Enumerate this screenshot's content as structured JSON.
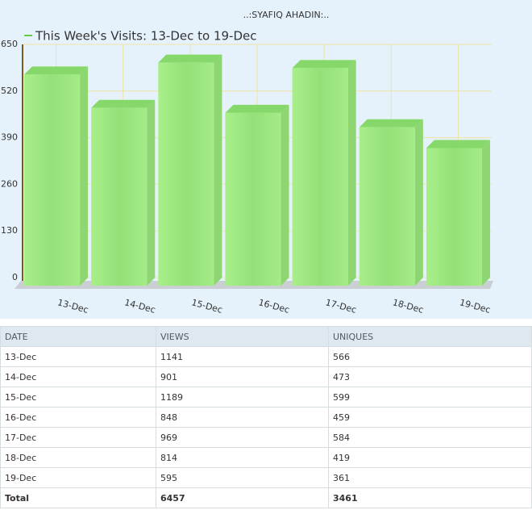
{
  "chart_data": {
    "type": "bar",
    "title": "..:SYAFIQ AHADIN:..",
    "series": [
      {
        "name": "This Week's Visits: 13-Dec to 19-Dec",
        "color": "#66cc44",
        "values": [
          566,
          473,
          599,
          459,
          584,
          419,
          361
        ]
      }
    ],
    "categories": [
      "13-Dec",
      "14-Dec",
      "15-Dec",
      "16-Dec",
      "17-Dec",
      "18-Dec",
      "19-Dec"
    ],
    "ylim": [
      0,
      650
    ],
    "yticks": [
      0,
      130,
      260,
      390,
      520,
      650
    ],
    "grid": true
  },
  "table": {
    "header": [
      "DATE",
      "VIEWS",
      "UNIQUES"
    ],
    "rows": [
      [
        "13-Dec",
        "1141",
        "566"
      ],
      [
        "14-Dec",
        "901",
        "473"
      ],
      [
        "15-Dec",
        "1189",
        "599"
      ],
      [
        "16-Dec",
        "848",
        "459"
      ],
      [
        "17-Dec",
        "969",
        "584"
      ],
      [
        "18-Dec",
        "814",
        "419"
      ],
      [
        "19-Dec",
        "595",
        "361"
      ]
    ],
    "total": [
      "Total",
      "6457",
      "3461"
    ]
  }
}
